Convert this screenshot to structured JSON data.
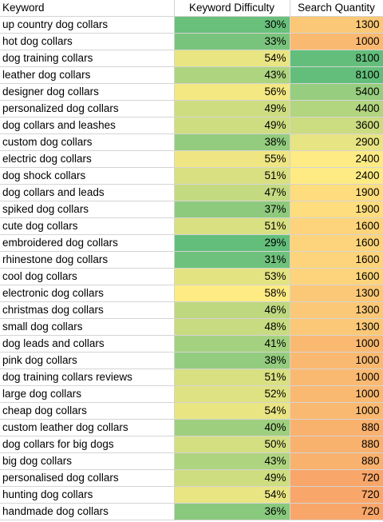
{
  "headers": [
    "Keyword",
    "Keyword Difficulty",
    "Search Quantity"
  ],
  "rows": [
    {
      "keyword": "up country dog collars",
      "difficulty": "30%",
      "quantity": "1300"
    },
    {
      "keyword": "hot dog collars",
      "difficulty": "33%",
      "quantity": "1000"
    },
    {
      "keyword": "dog training collars",
      "difficulty": "54%",
      "quantity": "8100"
    },
    {
      "keyword": "leather dog collars",
      "difficulty": "43%",
      "quantity": "8100"
    },
    {
      "keyword": "designer dog collars",
      "difficulty": "56%",
      "quantity": "5400"
    },
    {
      "keyword": "personalized dog collars",
      "difficulty": "49%",
      "quantity": "4400"
    },
    {
      "keyword": "dog collars and leashes",
      "difficulty": "49%",
      "quantity": "3600"
    },
    {
      "keyword": "custom dog collars",
      "difficulty": "38%",
      "quantity": "2900"
    },
    {
      "keyword": "electric dog collars",
      "difficulty": "55%",
      "quantity": "2400"
    },
    {
      "keyword": "dog shock collars",
      "difficulty": "51%",
      "quantity": "2400"
    },
    {
      "keyword": "dog collars and leads",
      "difficulty": "47%",
      "quantity": "1900"
    },
    {
      "keyword": "spiked dog collars",
      "difficulty": "37%",
      "quantity": "1900"
    },
    {
      "keyword": "cute dog collars",
      "difficulty": "51%",
      "quantity": "1600"
    },
    {
      "keyword": "embroidered dog collars",
      "difficulty": "29%",
      "quantity": "1600"
    },
    {
      "keyword": "rhinestone dog collars",
      "difficulty": "31%",
      "quantity": "1600"
    },
    {
      "keyword": "cool dog collars",
      "difficulty": "53%",
      "quantity": "1600"
    },
    {
      "keyword": "electronic dog collars",
      "difficulty": "58%",
      "quantity": "1300"
    },
    {
      "keyword": "christmas dog collars",
      "difficulty": "46%",
      "quantity": "1300"
    },
    {
      "keyword": "small dog collars",
      "difficulty": "48%",
      "quantity": "1300"
    },
    {
      "keyword": "dog leads and collars",
      "difficulty": "41%",
      "quantity": "1000"
    },
    {
      "keyword": "pink dog collars",
      "difficulty": "38%",
      "quantity": "1000"
    },
    {
      "keyword": "dog training collars reviews",
      "difficulty": "51%",
      "quantity": "1000"
    },
    {
      "keyword": "large dog collars",
      "difficulty": "52%",
      "quantity": "1000"
    },
    {
      "keyword": "cheap dog collars",
      "difficulty": "54%",
      "quantity": "1000"
    },
    {
      "keyword": "custom leather dog collars",
      "difficulty": "40%",
      "quantity": "880"
    },
    {
      "keyword": "dog collars for big dogs",
      "difficulty": "50%",
      "quantity": "880"
    },
    {
      "keyword": "big dog collars",
      "difficulty": "43%",
      "quantity": "880"
    },
    {
      "keyword": "personalised dog collars",
      "difficulty": "49%",
      "quantity": "720"
    },
    {
      "keyword": "hunting dog collars",
      "difficulty": "54%",
      "quantity": "720"
    },
    {
      "keyword": "handmade dog collars",
      "difficulty": "36%",
      "quantity": "720"
    }
  ],
  "colors": {
    "difficulty_low": "#63be7b",
    "difficulty_high": "#ffeb84",
    "quantity_low": "#f8a66a",
    "quantity_mid": "#ffeb84",
    "quantity_high": "#63be7b",
    "grid": "#d4d4d4"
  }
}
